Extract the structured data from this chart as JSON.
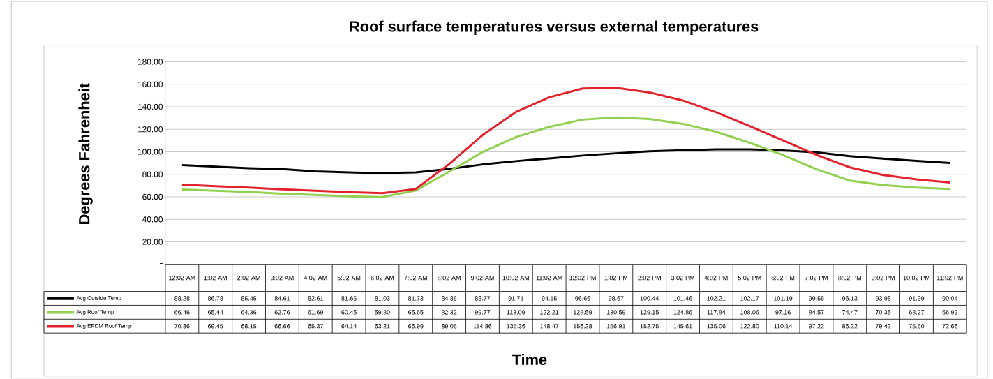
{
  "chart_data": {
    "type": "line",
    "title": "Roof surface temperatures versus external temperatures",
    "xlabel": "Time",
    "ylabel": "Degrees Fahrenheit",
    "categories": [
      "12:02 AM",
      "1:02 AM",
      "2:02 AM",
      "3:02 AM",
      "4:02 AM",
      "5:02 AM",
      "6:02 AM",
      "7:02 AM",
      "8:02 AM",
      "9:02 AM",
      "10:02 AM",
      "11:02 AM",
      "12:02 PM",
      "1:02 PM",
      "2:02 PM",
      "3:02 PM",
      "4:02 PM",
      "5:02 PM",
      "6:02 PM",
      "7:02 PM",
      "8:02 PM",
      "9:02 PM",
      "10:02 PM",
      "11:02 PM"
    ],
    "series": [
      {
        "name": "Avg Outside Temp",
        "color": "#000000",
        "values": [
          88.28,
          86.78,
          85.45,
          84.61,
          82.61,
          81.65,
          81.03,
          81.73,
          84.85,
          88.77,
          91.71,
          94.15,
          96.66,
          98.67,
          100.44,
          101.46,
          102.21,
          102.17,
          101.19,
          99.55,
          96.13,
          93.98,
          91.99,
          90.04
        ],
        "value_labels": [
          "88.28",
          "86.78",
          "85.45",
          "84.61",
          "82.61",
          "81.65",
          "81.03",
          "81.73",
          "84.85",
          "88.77",
          "91.71",
          "94.15",
          "96.66",
          "98.67",
          "100.44",
          "101.46",
          "102.21",
          "102.17",
          "101.19",
          "99.55",
          "96.13",
          "93.98",
          "91.99",
          "90.04"
        ]
      },
      {
        "name": "Avg Roof Temp",
        "color": "#92d050",
        "values": [
          66.46,
          65.44,
          64.36,
          62.76,
          61.69,
          60.45,
          59.8,
          65.65,
          82.32,
          99.77,
          113.09,
          122.21,
          128.59,
          130.59,
          129.15,
          124.86,
          117.84,
          108.06,
          97.16,
          84.57,
          74.47,
          70.35,
          68.27,
          66.92
        ],
        "value_labels": [
          "66.46",
          "65.44",
          "64.36",
          "62.76",
          "61.69",
          "60.45",
          "59.80",
          "65.65",
          "82.32",
          "99.77",
          "113.09",
          "122.21",
          "128.59",
          "130.59",
          "129.15",
          "124.86",
          "117.84",
          "108.06",
          "97.16",
          "84.57",
          "74.47",
          "70.35",
          "68.27",
          "66.92"
        ]
      },
      {
        "name": "Avg EPDM Roof Temp",
        "color": "#e3232c",
        "values": [
          70.86,
          69.45,
          68.15,
          66.66,
          65.37,
          64.14,
          63.21,
          66.99,
          89.05,
          114.86,
          135.36,
          148.47,
          156.28,
          156.91,
          152.75,
          145.61,
          135.06,
          122.8,
          110.14,
          97.22,
          86.22,
          79.42,
          75.5,
          72.66
        ],
        "value_labels": [
          "70.86",
          "69.45",
          "68.15",
          "66.66",
          "65.37",
          "64.14",
          "63.21",
          "66.99",
          "89.05",
          "114.86",
          "135.36",
          "148.47",
          "156.28",
          "156.91",
          "152.75",
          "145.61",
          "135.06",
          "122.80",
          "110.14",
          "97.22",
          "86.22",
          "79.42",
          "75.50",
          "72.66"
        ]
      }
    ],
    "ylim": [
      0,
      180
    ],
    "yticks": [
      {
        "value": 0,
        "label": "-"
      },
      {
        "value": 20,
        "label": "20.00"
      },
      {
        "value": 40,
        "label": "40.00"
      },
      {
        "value": 60,
        "label": "60.00"
      },
      {
        "value": 80,
        "label": "80.00"
      },
      {
        "value": 100,
        "label": "100.00"
      },
      {
        "value": 120,
        "label": "120.00"
      },
      {
        "value": 140,
        "label": "140.00"
      },
      {
        "value": 160,
        "label": "160.00"
      },
      {
        "value": 180,
        "label": "180.00"
      }
    ],
    "grid": "y",
    "legend": "bottom",
    "line_style": "solid"
  }
}
